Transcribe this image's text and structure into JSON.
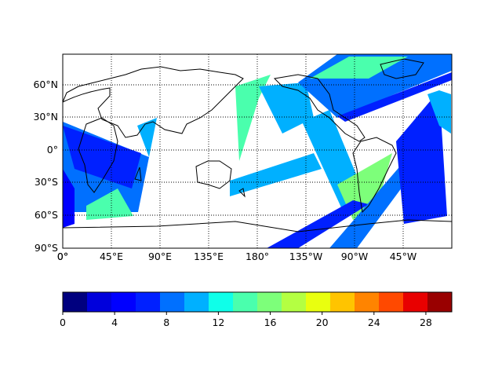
{
  "map": {
    "projection": "cylindrical",
    "lon_labels": [
      "0°",
      "0°",
      "45°E",
      "90°E",
      "135°E",
      "180°",
      "135°W",
      "90°W",
      "45°W"
    ],
    "lat_labels": [
      "60°N",
      "30°N",
      "0°",
      "30°S",
      "60°S",
      "90°S"
    ],
    "gridlines": "dotted",
    "coastlines": true
  },
  "colorbar": {
    "orientation": "horizontal",
    "min": 0,
    "max": 30,
    "tick_labels": [
      "0",
      "4",
      "8",
      "12",
      "16",
      "20",
      "24",
      "28"
    ],
    "colors": [
      "#00007f",
      "#0000dc",
      "#0000ff",
      "#0020ff",
      "#0070ff",
      "#00b0ff",
      "#0fffe9",
      "#4affad",
      "#7dff7a",
      "#b4ff42",
      "#e9ff0f",
      "#ffc400",
      "#ff8400",
      "#ff4900",
      "#e80000",
      "#990000"
    ]
  }
}
